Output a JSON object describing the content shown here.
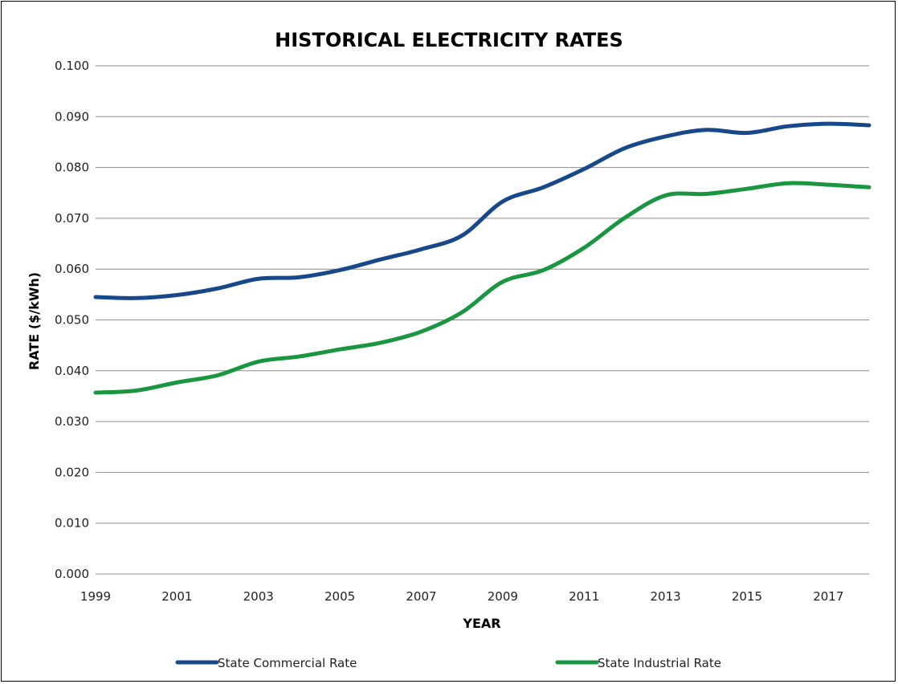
{
  "chart_data": {
    "type": "line",
    "title": "HISTORICAL ELECTRICITY RATES",
    "xlabel": "YEAR",
    "ylabel": "RATE ($/kWh)",
    "x": [
      1999,
      2000,
      2001,
      2002,
      2003,
      2004,
      2005,
      2006,
      2007,
      2008,
      2009,
      2010,
      2011,
      2012,
      2013,
      2014,
      2015,
      2016,
      2017,
      2018
    ],
    "x_tick_labels": [
      "1999",
      "2001",
      "2003",
      "2005",
      "2007",
      "2009",
      "2011",
      "2013",
      "2015",
      "2017"
    ],
    "y_tick_labels": [
      "0.000",
      "0.010",
      "0.020",
      "0.030",
      "0.040",
      "0.050",
      "0.060",
      "0.070",
      "0.080",
      "0.090",
      "0.100"
    ],
    "ylim": [
      0,
      0.1
    ],
    "grid": true,
    "legend_position": "bottom",
    "series": [
      {
        "name": "State Commercial Rate",
        "color": "#17488a",
        "values": [
          0.0545,
          0.0543,
          0.0549,
          0.0562,
          0.0581,
          0.0584,
          0.0598,
          0.0619,
          0.0639,
          0.0666,
          0.0733,
          0.0761,
          0.0797,
          0.0838,
          0.0861,
          0.0874,
          0.0868,
          0.0881,
          0.0886,
          0.0883
        ]
      },
      {
        "name": "State Industrial Rate",
        "color": "#1a9641",
        "values": [
          0.0357,
          0.0361,
          0.0377,
          0.0391,
          0.0418,
          0.0428,
          0.0442,
          0.0455,
          0.0477,
          0.0515,
          0.0575,
          0.0598,
          0.0642,
          0.0701,
          0.0745,
          0.0748,
          0.0758,
          0.0769,
          0.0766,
          0.0761
        ]
      }
    ]
  }
}
